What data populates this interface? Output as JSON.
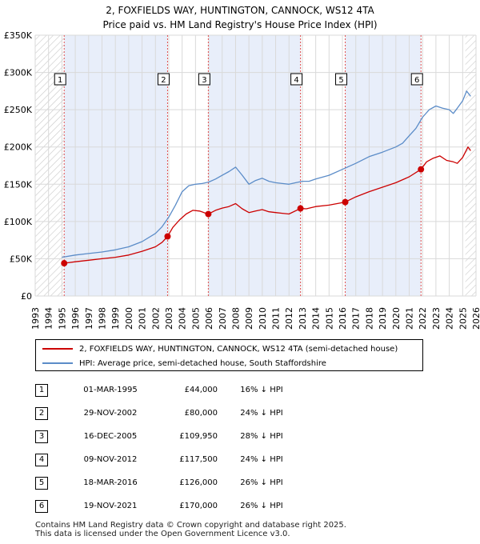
{
  "chart_data": {
    "type": "line",
    "title": "2, FOXFIELDS WAY, HUNTINGTON, CANNOCK, WS12 4TA",
    "subtitle": "Price paid vs. HM Land Registry's House Price Index (HPI)",
    "xlim": [
      1993,
      2026
    ],
    "ylim": [
      0,
      350000
    ],
    "x_ticks": [
      1993,
      1994,
      1995,
      1996,
      1997,
      1998,
      1999,
      2000,
      2001,
      2002,
      2003,
      2004,
      2005,
      2006,
      2007,
      2008,
      2009,
      2010,
      2011,
      2012,
      2013,
      2014,
      2015,
      2016,
      2017,
      2018,
      2019,
      2020,
      2021,
      2022,
      2023,
      2024,
      2025,
      2026
    ],
    "y_ticks": [
      {
        "value": 0,
        "label": "£0"
      },
      {
        "value": 50000,
        "label": "£50K"
      },
      {
        "value": 100000,
        "label": "£100K"
      },
      {
        "value": 150000,
        "label": "£150K"
      },
      {
        "value": 200000,
        "label": "£200K"
      },
      {
        "value": 250000,
        "label": "£250K"
      },
      {
        "value": 300000,
        "label": "£300K"
      },
      {
        "value": 350000,
        "label": "£350K"
      }
    ],
    "grid": true,
    "colors": {
      "property": "#cc0000",
      "hpi": "#5b8cc8",
      "shade": "#e8eefa",
      "vline": "#e05050"
    },
    "series": [
      {
        "name": "2, FOXFIELDS WAY, HUNTINGTON, CANNOCK, WS12 4TA (semi-detached house)",
        "x": [
          1995.17,
          1996,
          1997,
          1998,
          1999,
          2000,
          2001,
          2002,
          2002.5,
          2002.91,
          2003.3,
          2003.8,
          2004.3,
          2004.8,
          2005.3,
          2005.96,
          2006.5,
          2007,
          2007.5,
          2008,
          2008.5,
          2009,
          2009.5,
          2010,
          2010.5,
          2011,
          2011.5,
          2012,
          2012.86,
          2013.3,
          2014,
          2015,
          2016.21,
          2017,
          2018,
          2019,
          2020,
          2021,
          2021.88,
          2022.3,
          2022.8,
          2023.3,
          2023.8,
          2024.3,
          2024.6,
          2025,
          2025.4,
          2025.6
        ],
        "values": [
          44000,
          46000,
          48000,
          50000,
          52000,
          55000,
          60000,
          66000,
          72000,
          80000,
          92000,
          102000,
          110000,
          115000,
          114000,
          109950,
          115000,
          118000,
          120000,
          124000,
          117000,
          112000,
          114000,
          116000,
          113000,
          112000,
          111000,
          110000,
          117500,
          117000,
          120000,
          122000,
          126000,
          133000,
          140000,
          146000,
          152000,
          160000,
          170000,
          180000,
          185000,
          188000,
          182000,
          180000,
          178000,
          186000,
          200000,
          195000
        ]
      },
      {
        "name": "HPI: Average price, semi-detached house, South Staffordshire",
        "x": [
          1995,
          1996,
          1997,
          1998,
          1999,
          2000,
          2001,
          2002,
          2002.5,
          2003,
          2003.5,
          2004,
          2004.5,
          2005,
          2005.5,
          2006,
          2006.5,
          2007,
          2007.5,
          2008,
          2008.5,
          2009,
          2009.5,
          2010,
          2010.5,
          2011,
          2011.5,
          2012,
          2012.5,
          2013,
          2013.5,
          2014,
          2015,
          2016,
          2017,
          2018,
          2019,
          2020,
          2020.5,
          2021,
          2021.5,
          2022,
          2022.5,
          2023,
          2023.5,
          2024,
          2024.3,
          2024.6,
          2025,
          2025.3,
          2025.6
        ],
        "values": [
          52000,
          55000,
          57000,
          59000,
          62000,
          66000,
          73000,
          84000,
          93000,
          106000,
          122000,
          140000,
          148000,
          150000,
          151000,
          153000,
          157000,
          162000,
          167000,
          173000,
          162000,
          150000,
          155000,
          158000,
          154000,
          152000,
          151000,
          150000,
          152000,
          154000,
          154000,
          157000,
          162000,
          170000,
          178000,
          187000,
          193000,
          200000,
          205000,
          215000,
          225000,
          240000,
          250000,
          255000,
          252000,
          250000,
          245000,
          252000,
          262000,
          275000,
          268000
        ]
      }
    ],
    "sales": [
      {
        "num": "1",
        "x": 1995.17,
        "value": 44000,
        "date": "01-MAR-1995",
        "price": "£44,000",
        "hpi": "16% ↓ HPI"
      },
      {
        "num": "2",
        "x": 2002.91,
        "value": 80000,
        "date": "29-NOV-2002",
        "price": "£80,000",
        "hpi": "24% ↓ HPI"
      },
      {
        "num": "3",
        "x": 2005.96,
        "value": 109950,
        "date": "16-DEC-2005",
        "price": "£109,950",
        "hpi": "28% ↓ HPI"
      },
      {
        "num": "4",
        "x": 2012.86,
        "value": 117500,
        "date": "09-NOV-2012",
        "price": "£117,500",
        "hpi": "24% ↓ HPI"
      },
      {
        "num": "5",
        "x": 2016.21,
        "value": 126000,
        "date": "18-MAR-2016",
        "price": "£126,000",
        "hpi": "26% ↓ HPI"
      },
      {
        "num": "6",
        "x": 2021.88,
        "value": 170000,
        "date": "19-NOV-2021",
        "price": "£170,000",
        "hpi": "26% ↓ HPI"
      }
    ],
    "hatch_ranges": [
      [
        1993,
        1995.17
      ],
      [
        2025.2,
        2026
      ]
    ]
  },
  "legend": {
    "property_label": "2, FOXFIELDS WAY, HUNTINGTON, CANNOCK, WS12 4TA (semi-detached house)",
    "hpi_label": "HPI: Average price, semi-detached house, South Staffordshire"
  },
  "footer": {
    "line1": "Contains HM Land Registry data © Crown copyright and database right 2025.",
    "line2": "This data is licensed under the Open Government Licence v3.0."
  }
}
